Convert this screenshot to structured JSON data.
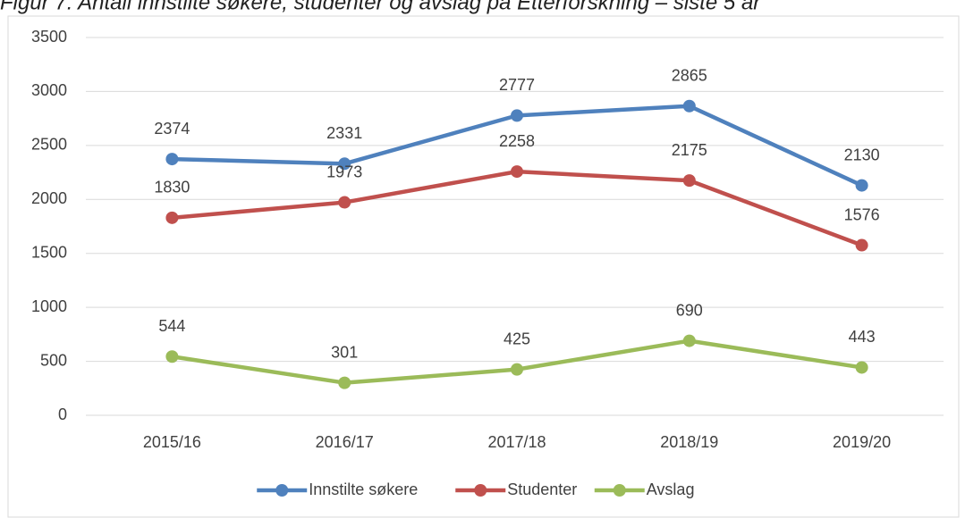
{
  "chart_data": {
    "type": "line",
    "title": "Figur 7: Antall innstilte søkere, studenter og avslag på Etterforskning – siste 5 år",
    "categories": [
      "2015/16",
      "2016/17",
      "2017/18",
      "2018/19",
      "2019/20"
    ],
    "series": [
      {
        "name": "Innstilte søkere",
        "color": "#4f81bd",
        "values": [
          2374,
          2331,
          2777,
          2865,
          2130
        ]
      },
      {
        "name": "Studenter",
        "color": "#c0504d",
        "values": [
          1830,
          1973,
          2258,
          2175,
          1576
        ]
      },
      {
        "name": "Avslag",
        "color": "#9bbb59",
        "values": [
          544,
          301,
          425,
          690,
          443
        ]
      }
    ],
    "ylim": [
      0,
      3500
    ],
    "yticks": [
      0,
      500,
      1000,
      1500,
      2000,
      2500,
      3000,
      3500
    ],
    "grid": true,
    "legend": "bottom"
  }
}
